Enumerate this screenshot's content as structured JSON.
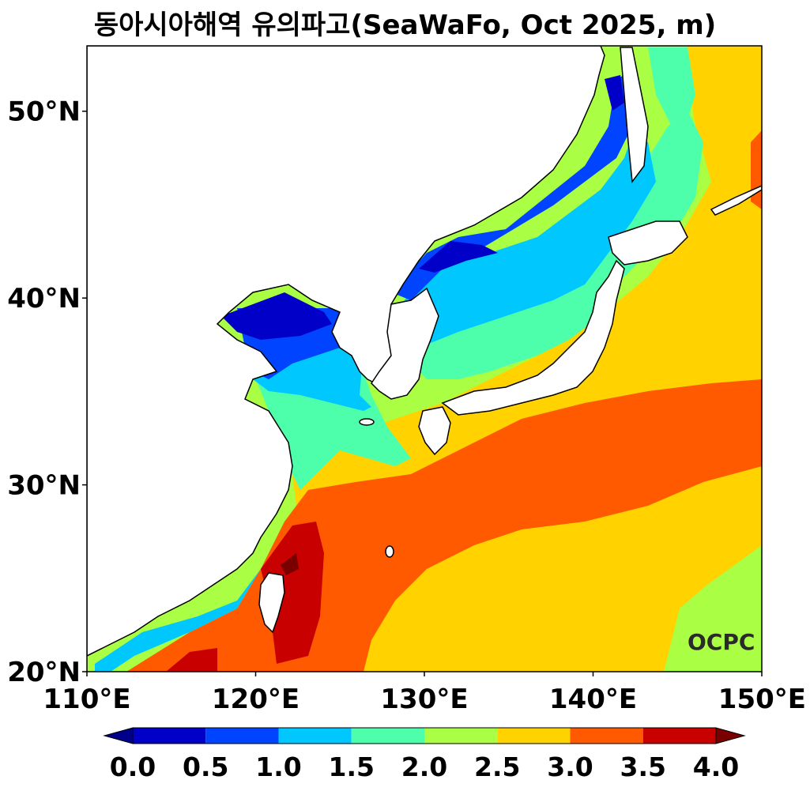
{
  "title": "동아시아해역 유의파고(SeaWaFo, Oct 2025, m)",
  "lat_ticks": [
    {
      "value": 50,
      "label": "50°N"
    },
    {
      "value": 40,
      "label": "40°N"
    },
    {
      "value": 30,
      "label": "30°N"
    },
    {
      "value": 20,
      "label": "20°N"
    }
  ],
  "lon_ticks": [
    {
      "value": 110,
      "label": "110°E"
    },
    {
      "value": 120,
      "label": "120°E"
    },
    {
      "value": 130,
      "label": "130°E"
    },
    {
      "value": 140,
      "label": "140°E"
    },
    {
      "value": 150,
      "label": "150°E"
    }
  ],
  "extent": {
    "lon_min": 110,
    "lon_max": 150,
    "lat_min": 20,
    "lat_max": 53.5
  },
  "colorbar": {
    "levels": [
      "0.0",
      "0.5",
      "1.0",
      "1.5",
      "2.0",
      "2.5",
      "3.0",
      "3.5",
      "4.0"
    ],
    "colors": [
      "#0000c8",
      "#0044ff",
      "#00c8ff",
      "#4dffaa",
      "#aaff44",
      "#ffd200",
      "#ff5a00",
      "#c80000"
    ],
    "under_color": "#00008b",
    "over_color": "#7a0000"
  },
  "logo": {
    "text": "OCPC"
  }
}
